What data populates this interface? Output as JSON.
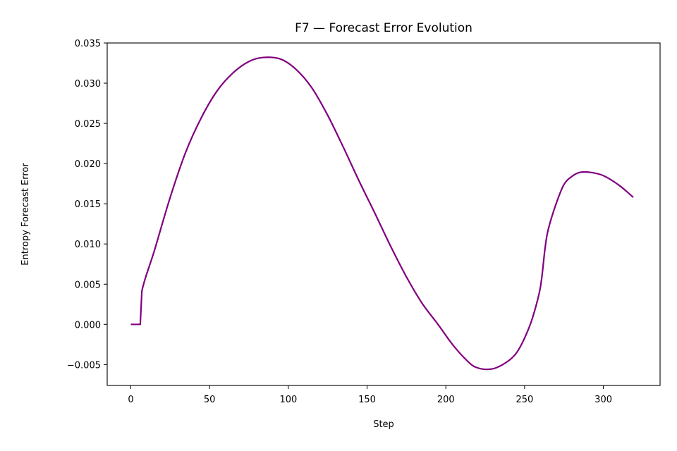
{
  "chart_data": {
    "type": "line",
    "title": "F7 — Forecast Error Evolution",
    "xlabel": "Step",
    "ylabel": "Entropy Forecast Error",
    "xlim": [
      -15,
      336
    ],
    "ylim": [
      -0.0076,
      0.035
    ],
    "xticks": [
      0,
      50,
      100,
      150,
      200,
      250,
      300
    ],
    "xtick_labels": [
      "0",
      "50",
      "100",
      "150",
      "200",
      "250",
      "300"
    ],
    "yticks": [
      -0.005,
      0.0,
      0.005,
      0.01,
      0.015,
      0.02,
      0.025,
      0.03,
      0.035
    ],
    "ytick_labels": [
      "−0.005",
      "0.000",
      "0.005",
      "0.010",
      "0.015",
      "0.020",
      "0.025",
      "0.030",
      "0.035"
    ],
    "grid": false,
    "series": [
      {
        "color": "#800080",
        "x": [
          0,
          6,
          7,
          15,
          25,
          35,
          45,
          55,
          65,
          75,
          84,
          95,
          105,
          115,
          125,
          135,
          145,
          155,
          165,
          175,
          185,
          195,
          205,
          215,
          220,
          226,
          232,
          240,
          245,
          250,
          255,
          260,
          263,
          265,
          270,
          275,
          280,
          285,
          292,
          300,
          310,
          319
        ],
        "y": [
          0.0,
          0.0,
          0.0041,
          0.0092,
          0.0158,
          0.0215,
          0.0258,
          0.0291,
          0.0313,
          0.0327,
          0.0332,
          0.033,
          0.0317,
          0.0294,
          0.026,
          0.022,
          0.0178,
          0.0138,
          0.0097,
          0.0059,
          0.0026,
          0.0,
          -0.0027,
          -0.0048,
          -0.0054,
          -0.0056,
          -0.0054,
          -0.0045,
          -0.0035,
          -0.0017,
          0.0008,
          0.0046,
          0.0095,
          0.0118,
          0.015,
          0.0174,
          0.0184,
          0.0189,
          0.0189,
          0.0185,
          0.0173,
          0.0158
        ]
      }
    ]
  }
}
